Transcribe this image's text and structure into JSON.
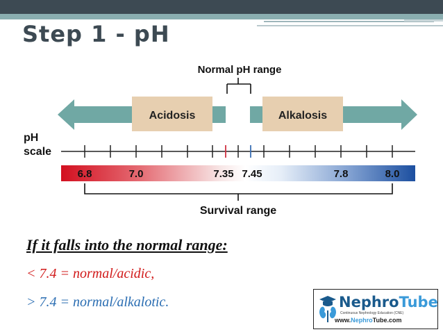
{
  "slide": {
    "title": "Step 1 - pH"
  },
  "diagram": {
    "normal_label": "Normal pH range",
    "acidosis_label": "Acidosis",
    "alkalosis_label": "Alkalosis",
    "ph_label_line1": "pH",
    "ph_label_line2": "scale",
    "scale_values": [
      "6.8",
      "7.0",
      "7.35",
      "7.45",
      "7.8",
      "8.0"
    ],
    "survival_label": "Survival range",
    "colors": {
      "arrow": "#70a8a4",
      "box": "#e7cfb0",
      "acid": "#d31020",
      "base": "#1c4fa0",
      "normal_tick_acid": "#cf3040",
      "normal_tick_base": "#3a6fb5"
    }
  },
  "rules": {
    "heading": "If it falls into the normal range:",
    "acidic": "< 7.4 = normal/acidic,",
    "alkalotic": "> 7.4 = normal/alkalotic."
  },
  "logo": {
    "brand_part1": "Nephro",
    "brand_part2": "Tube",
    "tagline": "Continuous Nephrology Education (CNE)",
    "url_part1": "www.",
    "url_part2": "Nephro",
    "url_part3": "Tube.com"
  }
}
